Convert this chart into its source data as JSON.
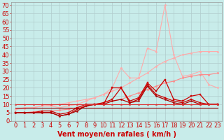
{
  "xlabel": "Vent moyen/en rafales ( km/h )",
  "yticks": [
    0,
    5,
    10,
    15,
    20,
    25,
    30,
    35,
    40,
    45,
    50,
    55,
    60,
    65,
    70
  ],
  "xticks": [
    0,
    1,
    2,
    3,
    4,
    5,
    6,
    7,
    8,
    9,
    10,
    11,
    12,
    13,
    14,
    15,
    16,
    17,
    18,
    19,
    20,
    21,
    22,
    23
  ],
  "xlim": [
    -0.5,
    23.5
  ],
  "ylim": [
    0,
    72
  ],
  "background_color": "#c8ecea",
  "grid_color": "#b0cccc",
  "xlabel_color": "#cc0000",
  "xlabel_fontsize": 7,
  "tick_color": "#cc0000",
  "tick_fontsize": 6,
  "series": [
    {
      "color": "#ffaaaa",
      "linewidth": 0.8,
      "marker": "D",
      "markersize": 1.5,
      "y": [
        7,
        7.5,
        8,
        9,
        9.5,
        10,
        11,
        12,
        13,
        14,
        16,
        18,
        20,
        23,
        26,
        29,
        33,
        36,
        38,
        40,
        41,
        42,
        42,
        42
      ]
    },
    {
      "color": "#ffaaaa",
      "linewidth": 0.8,
      "marker": "D",
      "markersize": 1.5,
      "y": [
        7,
        8,
        8,
        9,
        9,
        8,
        9,
        10,
        12,
        14,
        16,
        20,
        32,
        26,
        26,
        44,
        42,
        70,
        40,
        27,
        28,
        30,
        22,
        20
      ]
    },
    {
      "color": "#ff8888",
      "linewidth": 0.8,
      "marker": "D",
      "markersize": 1.5,
      "y": [
        5,
        5,
        5.5,
        6,
        6,
        6.5,
        7,
        8,
        9,
        10,
        11,
        12,
        13,
        15,
        17,
        19,
        21,
        23,
        24,
        26,
        27,
        28,
        28,
        29
      ]
    },
    {
      "color": "#cc0000",
      "linewidth": 0.9,
      "marker": "s",
      "markersize": 2.0,
      "y": [
        5,
        5,
        5,
        6,
        6,
        4,
        5,
        8,
        10,
        10,
        10,
        20,
        20,
        12,
        14,
        23,
        18,
        25,
        13,
        12,
        15,
        16,
        10,
        10
      ]
    },
    {
      "color": "#cc0000",
      "linewidth": 0.9,
      "marker": "s",
      "markersize": 2.0,
      "y": [
        5,
        5,
        5,
        5,
        5,
        3,
        4,
        7,
        9,
        10,
        11,
        13,
        20,
        11,
        13,
        22,
        16,
        14,
        12,
        11,
        13,
        11,
        10,
        10
      ]
    },
    {
      "color": "#aa0000",
      "linewidth": 0.9,
      "marker": "o",
      "markersize": 1.5,
      "y": [
        5,
        5,
        5,
        5,
        5,
        3,
        4,
        6,
        9,
        10,
        10,
        12,
        13,
        11,
        12,
        21,
        15,
        13,
        11,
        10,
        12,
        10,
        10,
        10
      ]
    },
    {
      "color": "#dd3333",
      "linewidth": 0.8,
      "marker": "^",
      "markersize": 1.5,
      "y": [
        10,
        10,
        10,
        10,
        10,
        10,
        10,
        10,
        10,
        10,
        10,
        10,
        10,
        10,
        10,
        10,
        10,
        10,
        10,
        10,
        10,
        10,
        10,
        10
      ]
    },
    {
      "color": "#880000",
      "linewidth": 0.8,
      "marker": null,
      "markersize": 0,
      "y": [
        8,
        8,
        8,
        8,
        8,
        8,
        8,
        8,
        8,
        8,
        8,
        8,
        8,
        8,
        8,
        8,
        8,
        8,
        8,
        8,
        8,
        8,
        8,
        8
      ]
    }
  ]
}
